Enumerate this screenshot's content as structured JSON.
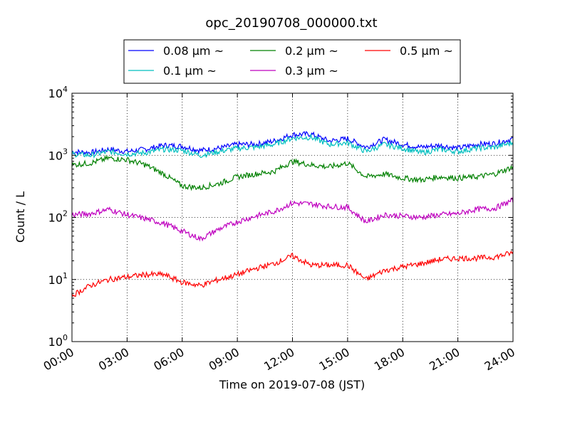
{
  "chart_data": {
    "type": "line",
    "title": "opc_20190708_000000.txt",
    "xlabel": "Time on 2019-07-08 (JST)",
    "ylabel": "Count / L",
    "yscale": "log",
    "ylim": [
      1,
      10000
    ],
    "y_tick_labels": [
      {
        "base": "10",
        "exp": "0"
      },
      {
        "base": "10",
        "exp": "1"
      },
      {
        "base": "10",
        "exp": "2"
      },
      {
        "base": "10",
        "exp": "3"
      },
      {
        "base": "10",
        "exp": "4"
      }
    ],
    "xlim": [
      "2019-07-08 00:00",
      "2019-07-09 00:00"
    ],
    "x_tick_labels": [
      "00:00",
      "03:00",
      "06:00",
      "09:00",
      "12:00",
      "15:00",
      "18:00",
      "21:00",
      "24:00"
    ],
    "grid": true,
    "legend_position": "top-center",
    "x_hours": [
      0,
      1,
      2,
      3,
      4,
      5,
      6,
      7,
      8,
      9,
      10,
      11,
      12,
      13,
      14,
      15,
      16,
      17,
      18,
      19,
      20,
      21,
      22,
      23,
      24
    ],
    "series": [
      {
        "name": "0.08 μm ~",
        "color": "#0000ff",
        "values": [
          1150,
          1100,
          1250,
          1150,
          1250,
          1450,
          1400,
          1200,
          1300,
          1500,
          1500,
          1700,
          2150,
          2200,
          1700,
          1850,
          1350,
          1800,
          1500,
          1350,
          1450,
          1300,
          1500,
          1550,
          1850
        ]
      },
      {
        "name": "0.1 μm ~",
        "color": "#00bfbf",
        "values": [
          1050,
          1000,
          1150,
          1050,
          1100,
          1250,
          1200,
          1000,
          1150,
          1300,
          1350,
          1500,
          1900,
          1950,
          1500,
          1600,
          1150,
          1500,
          1300,
          1100,
          1250,
          1150,
          1300,
          1350,
          1600
        ]
      },
      {
        "name": "0.2 μm ~",
        "color": "#008000",
        "values": [
          700,
          750,
          900,
          850,
          700,
          500,
          320,
          300,
          350,
          450,
          500,
          550,
          800,
          700,
          650,
          750,
          450,
          500,
          430,
          400,
          450,
          430,
          450,
          500,
          650
        ]
      },
      {
        "name": "0.3 μm ~",
        "color": "#bf00bf",
        "values": [
          110,
          115,
          135,
          110,
          95,
          80,
          60,
          45,
          65,
          85,
          105,
          125,
          170,
          165,
          150,
          145,
          85,
          110,
          105,
          100,
          110,
          115,
          135,
          140,
          190
        ]
      },
      {
        "name": "0.5 μm ~",
        "color": "#ff0000",
        "values": [
          5.5,
          8,
          10,
          11,
          12,
          12,
          9,
          8,
          10,
          12,
          15,
          18,
          24,
          17,
          17,
          17,
          10,
          14,
          16,
          18,
          21,
          22,
          22,
          23,
          27
        ]
      }
    ]
  }
}
